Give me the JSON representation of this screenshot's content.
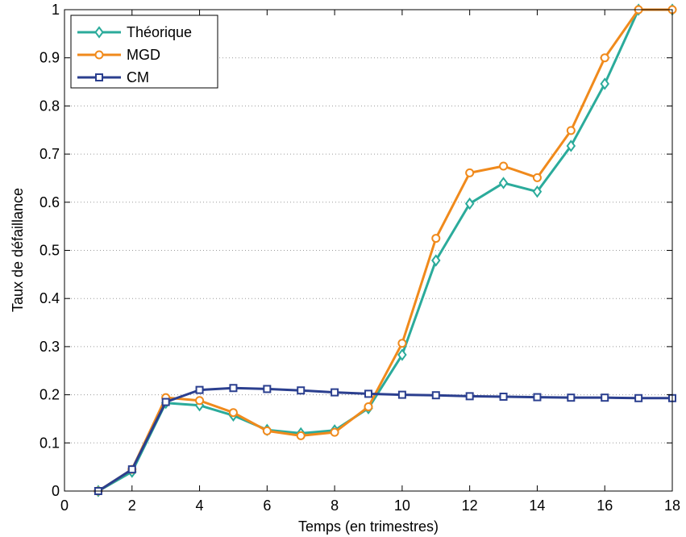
{
  "chart_data": {
    "type": "line",
    "title": "",
    "xlabel": "Temps (en trimestres)",
    "ylabel": "Taux de défaillance",
    "xlim": [
      0,
      18
    ],
    "ylim": [
      0,
      1
    ],
    "xticks": [
      "0",
      "2",
      "4",
      "6",
      "8",
      "10",
      "12",
      "14",
      "16",
      "18"
    ],
    "yticks": [
      "0",
      "0.1",
      "0.2",
      "0.3",
      "0.4",
      "0.5",
      "0.6",
      "0.7",
      "0.8",
      "0.9",
      "1"
    ],
    "grid": "dotted horizontal",
    "legend_position": "top-left",
    "x": [
      1,
      2,
      3,
      4,
      5,
      6,
      7,
      8,
      9,
      10,
      11,
      12,
      13,
      14,
      15,
      16,
      17,
      18
    ],
    "series": [
      {
        "name": "Théorique",
        "color": "#2bab9b",
        "marker": "diamond",
        "values": [
          0.0,
          0.04,
          0.183,
          0.178,
          0.157,
          0.127,
          0.12,
          0.126,
          0.172,
          0.283,
          0.479,
          0.597,
          0.64,
          0.622,
          0.717,
          0.846,
          1.0,
          1.0
        ]
      },
      {
        "name": "MGD",
        "color": "#f08a1c",
        "marker": "circle",
        "values": [
          0.0,
          0.045,
          0.194,
          0.188,
          0.163,
          0.125,
          0.115,
          0.122,
          0.175,
          0.307,
          0.525,
          0.661,
          0.675,
          0.651,
          0.749,
          0.9,
          1.0,
          1.0
        ]
      },
      {
        "name": "CM",
        "color": "#2b3f8f",
        "marker": "square",
        "values": [
          0.0,
          0.045,
          0.185,
          0.21,
          0.214,
          0.212,
          0.209,
          0.205,
          0.202,
          0.2,
          0.199,
          0.197,
          0.196,
          0.195,
          0.194,
          0.194,
          0.193,
          0.193
        ]
      }
    ]
  }
}
